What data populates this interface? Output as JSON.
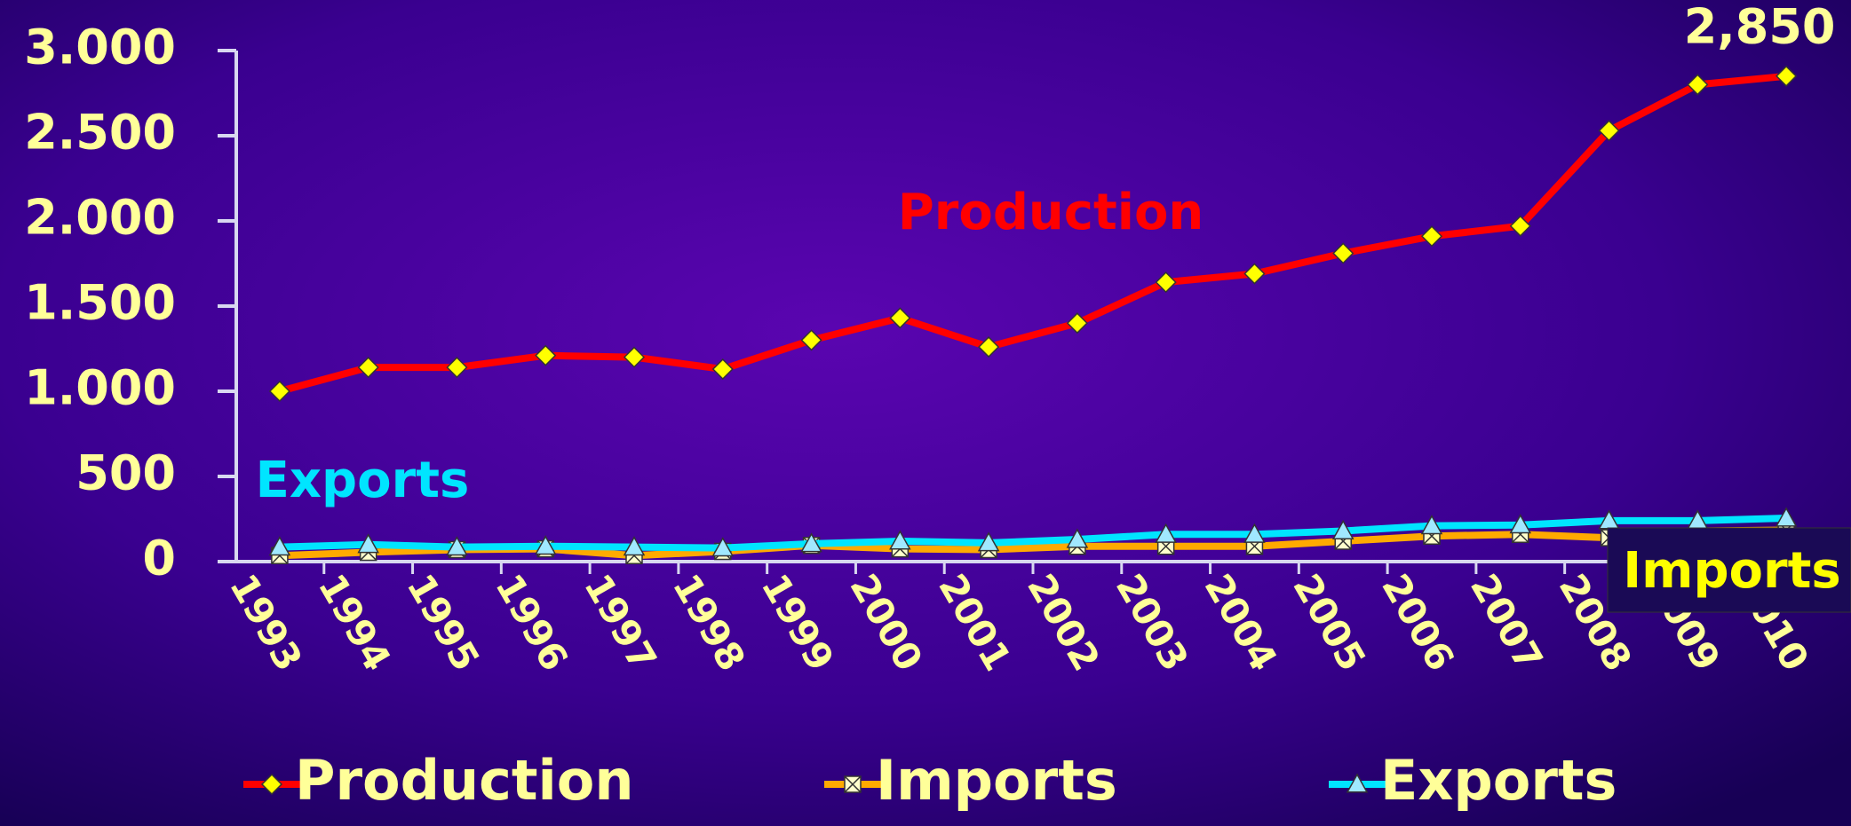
{
  "chart_data": {
    "type": "line",
    "categories": [
      "1993",
      "1994",
      "1995",
      "1996",
      "1997",
      "1998",
      "1999",
      "2000",
      "2001",
      "2002",
      "2003",
      "2004",
      "2005",
      "2006",
      "2007",
      "2008",
      "2009",
      "2010"
    ],
    "series": [
      {
        "name": "Production",
        "color": "#ff0000",
        "marker": "diamond",
        "marker_color": "#ffff00",
        "values": [
          1000,
          1140,
          1140,
          1210,
          1200,
          1130,
          1300,
          1430,
          1260,
          1400,
          1640,
          1690,
          1810,
          1910,
          1970,
          2530,
          2800,
          2850
        ],
        "value_labels": [
          null,
          null,
          null,
          null,
          null,
          null,
          null,
          null,
          null,
          null,
          null,
          null,
          null,
          null,
          null,
          null,
          null,
          "2,850"
        ]
      },
      {
        "name": "Imports",
        "color": "#ffaa00",
        "marker": "square-x",
        "marker_color": "#ffffcc",
        "values": [
          35,
          55,
          70,
          75,
          35,
          60,
          95,
          75,
          70,
          90,
          90,
          90,
          120,
          150,
          160,
          140,
          180,
          185
        ]
      },
      {
        "name": "Exports",
        "color": "#00e5ff",
        "marker": "triangle",
        "marker_color": "#a0e8ff",
        "values": [
          85,
          100,
          85,
          90,
          85,
          80,
          105,
          120,
          110,
          130,
          160,
          160,
          180,
          210,
          215,
          240,
          240,
          255
        ]
      }
    ],
    "annotations": [
      "Production",
      "Exports",
      "Imports"
    ],
    "ylim": [
      0,
      3000
    ],
    "yticks": [
      0,
      500,
      {
        "value": 1000,
        "label": "1.000"
      },
      {
        "value": 1500,
        "label": "1.500"
      },
      {
        "value": 2000,
        "label": "2.000"
      },
      {
        "value": 2500,
        "label": "2.500"
      },
      {
        "value": 3000,
        "label": "3.000"
      }
    ],
    "grid": false,
    "legend": "bottom"
  }
}
